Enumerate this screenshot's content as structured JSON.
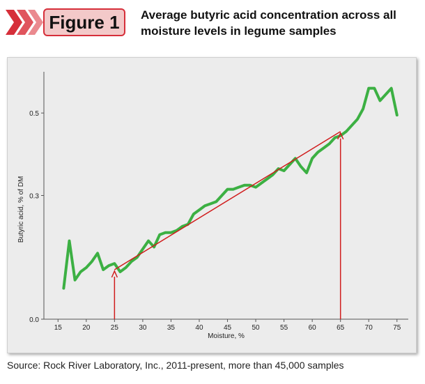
{
  "figure_label": "Figure 1",
  "title_line1": "Average butyric acid concentration across all",
  "title_line2": "moisture levels in legume samples",
  "source": "Source: Rock River Laboratory, Inc., 2011-present, more than 45,000 samples",
  "colors": {
    "series": "#3cb043",
    "trend": "#d01c1c",
    "badge_fill": "#f3c9c9",
    "badge_border": "#d62f3a",
    "panel": "#ececec"
  },
  "chart_data": {
    "type": "line",
    "title": "",
    "xlabel": "Moisture, %",
    "ylabel": "Butyric acid, % of DM",
    "xlim": [
      12.5,
      77
    ],
    "ylim": [
      0,
      0.6
    ],
    "x_ticks": [
      15,
      20,
      25,
      30,
      35,
      40,
      45,
      50,
      55,
      60,
      65,
      70,
      75
    ],
    "y_ticks": [
      0.0,
      0.3,
      0.5
    ],
    "y_tick_labels": [
      "0.0",
      "0.3",
      "0.5"
    ],
    "grid": false,
    "series": [
      {
        "x": [
          16,
          17,
          18,
          19,
          20,
          21,
          22,
          23,
          24,
          25,
          26,
          27,
          28,
          29,
          30,
          31,
          32,
          33,
          34,
          35,
          36,
          37,
          38,
          39,
          40,
          41,
          42,
          43,
          44,
          45,
          46,
          47,
          48,
          49,
          50,
          51,
          52,
          53,
          54,
          55,
          56,
          57,
          58,
          59,
          60,
          61,
          62,
          63,
          64,
          65,
          66,
          67,
          68,
          69,
          70,
          71,
          72,
          73,
          74,
          75
        ],
        "y": [
          0.075,
          0.19,
          0.095,
          0.115,
          0.125,
          0.14,
          0.16,
          0.12,
          0.13,
          0.135,
          0.115,
          0.125,
          0.14,
          0.15,
          0.17,
          0.19,
          0.175,
          0.205,
          0.21,
          0.21,
          0.215,
          0.225,
          0.23,
          0.255,
          0.265,
          0.275,
          0.28,
          0.285,
          0.3,
          0.315,
          0.315,
          0.32,
          0.325,
          0.325,
          0.32,
          0.33,
          0.34,
          0.35,
          0.365,
          0.36,
          0.375,
          0.39,
          0.37,
          0.355,
          0.39,
          0.405,
          0.415,
          0.425,
          0.44,
          0.445,
          0.455,
          0.47,
          0.485,
          0.51,
          0.56,
          0.56,
          0.53,
          0.545,
          0.56,
          0.495
        ]
      }
    ],
    "trend_line": {
      "x": [
        25,
        65
      ],
      "y": [
        0.12,
        0.455
      ]
    },
    "markers": [
      {
        "x": 25
      },
      {
        "x": 65
      }
    ]
  }
}
